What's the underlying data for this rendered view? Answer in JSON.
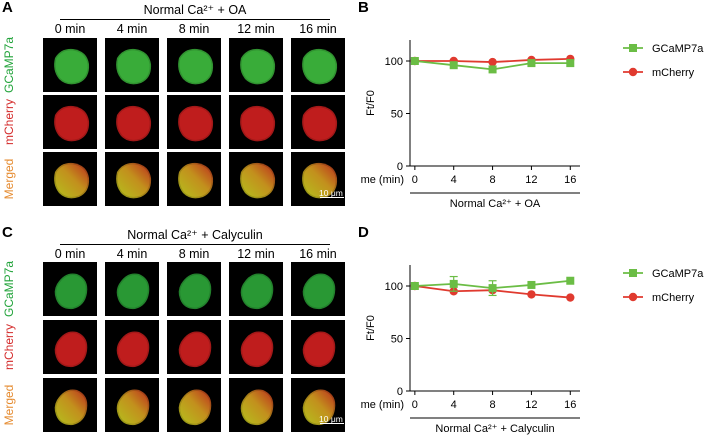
{
  "panel_A": {
    "letter": "A",
    "title": "Normal Ca²⁺ + OA",
    "times": [
      "0 min",
      "4 min",
      "8 min",
      "12 min",
      "16 min"
    ],
    "rows": [
      {
        "label": "GCaMP7a",
        "color": "#21a33a"
      },
      {
        "label": "mCherry",
        "color": "#d42b2b"
      },
      {
        "label": "Merged",
        "color": "#e58a2e"
      }
    ],
    "scale_bar": "10 μm"
  },
  "panel_C": {
    "letter": "C",
    "title": "Normal Ca²⁺ + Calyculin",
    "times": [
      "0 min",
      "4 min",
      "8 min",
      "12 min",
      "16 min"
    ],
    "rows": [
      {
        "label": "GCaMP7a",
        "color": "#21a33a"
      },
      {
        "label": "mCherry",
        "color": "#d42b2b"
      },
      {
        "label": "Merged",
        "color": "#e58a2e"
      }
    ],
    "scale_bar": "10 μm"
  },
  "chart_data": [
    {
      "panel": "B",
      "type": "line",
      "x": [
        0,
        4,
        8,
        12,
        16
      ],
      "xticks": [
        "0",
        "4",
        "8",
        "12",
        "16"
      ],
      "x_title": "Time (min)",
      "ylabel": "Ft/F0",
      "ylim": [
        0,
        120
      ],
      "yticks": [
        0,
        50,
        100
      ],
      "condition_label": "Normal Ca²⁺ + OA",
      "legend_position": "top-right",
      "series": [
        {
          "name": "GCaMP7a",
          "color": "#6bbd45",
          "marker": "square",
          "values": [
            100,
            96,
            92,
            98,
            98
          ],
          "errors": [
            0,
            0,
            0,
            0,
            0
          ]
        },
        {
          "name": "mCherry",
          "color": "#e03a2f",
          "marker": "circle",
          "values": [
            100,
            100,
            99,
            101,
            102
          ],
          "errors": [
            0,
            0,
            0,
            0,
            0
          ]
        }
      ]
    },
    {
      "panel": "D",
      "type": "line",
      "x": [
        0,
        4,
        8,
        12,
        16
      ],
      "xticks": [
        "0",
        "4",
        "8",
        "12",
        "16"
      ],
      "x_title": "Time (min)",
      "ylabel": "Ft/F0",
      "ylim": [
        0,
        120
      ],
      "yticks": [
        0,
        50,
        100
      ],
      "condition_label": "Normal Ca²⁺ + Calyculin",
      "legend_position": "top-right",
      "series": [
        {
          "name": "GCaMP7a",
          "color": "#6bbd45",
          "marker": "square",
          "values": [
            100,
            102,
            98,
            101,
            105
          ],
          "errors": [
            0,
            7,
            7,
            0,
            0
          ]
        },
        {
          "name": "mCherry",
          "color": "#e03a2f",
          "marker": "circle",
          "values": [
            100,
            95,
            96,
            92,
            89
          ],
          "errors": [
            0,
            0,
            0,
            0,
            0
          ]
        }
      ]
    }
  ]
}
